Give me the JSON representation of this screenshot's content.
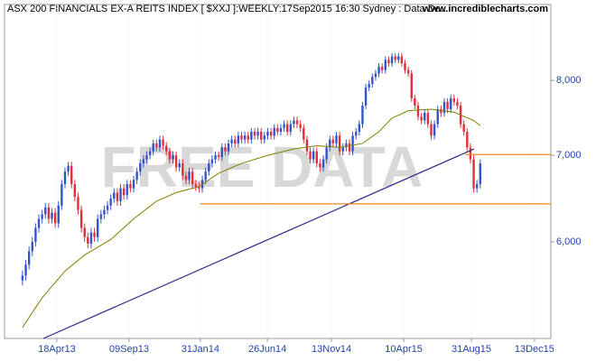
{
  "chart_data": {
    "type": "candlestick",
    "title": "ASX 200 FINANCIALS EX-A REITS INDEX [ $XXJ ]:WEEKLY:17Sep2015 16:30 Sydney : Data De..",
    "source": "www.incrediblecharts.com",
    "watermark": "FREE DATA",
    "log_scale": true,
    "grid": true,
    "up_color": "#3355cc",
    "down_color": "#e0303a",
    "xlim": [
      -5.5,
      161.6
    ],
    "xticks": [
      {
        "value": 10.5,
        "label": "18Apr13"
      },
      {
        "value": 32.6,
        "label": "09Sep13"
      },
      {
        "value": 54.4,
        "label": "31Jan14"
      },
      {
        "value": 74.9,
        "label": "26Jun14"
      },
      {
        "value": 94.5,
        "label": "13Nov14"
      },
      {
        "value": 116.6,
        "label": "10Apr15"
      },
      {
        "value": 137.3,
        "label": "31Aug15"
      },
      {
        "value": 156.6,
        "label": "13Dec15"
      }
    ],
    "ylim": [
      5050,
      9160
    ],
    "yticks": [
      {
        "value": 6000,
        "label": "6,000"
      },
      {
        "value": 7000,
        "label": "7,000"
      },
      {
        "value": 8000,
        "label": "8,000"
      }
    ],
    "x": [
      0,
      1,
      2,
      3,
      4,
      5,
      6,
      7,
      8,
      9,
      10,
      11,
      12,
      13,
      14,
      15,
      16,
      17,
      18,
      19,
      20,
      21,
      22,
      23,
      24,
      25,
      26,
      27,
      28,
      29,
      30,
      31,
      32,
      33,
      34,
      35,
      36,
      37,
      38,
      39,
      40,
      41,
      42,
      43,
      44,
      45,
      46,
      47,
      48,
      49,
      50,
      51,
      52,
      53,
      54,
      55,
      56,
      57,
      58,
      59,
      60,
      61,
      62,
      63,
      64,
      65,
      66,
      67,
      68,
      69,
      70,
      71,
      72,
      73,
      74,
      75,
      76,
      77,
      78,
      79,
      80,
      81,
      82,
      83,
      84,
      85,
      86,
      87,
      88,
      89,
      90,
      91,
      92,
      93,
      94,
      95,
      96,
      97,
      98,
      99,
      100,
      101,
      102,
      103,
      104,
      105,
      106,
      107,
      108,
      109,
      110,
      111,
      112,
      113,
      114,
      115,
      116,
      117,
      118,
      119,
      120,
      121,
      122,
      123,
      124,
      125,
      126,
      127,
      128,
      129,
      130,
      131,
      132,
      133,
      134,
      135,
      136,
      137,
      138,
      139,
      140
    ],
    "open": [
      5600,
      5650,
      5760,
      5900,
      6000,
      6150,
      6250,
      6300,
      6380,
      6250,
      6320,
      6200,
      6400,
      6650,
      6800,
      6870,
      6650,
      6500,
      6350,
      6150,
      6050,
      5980,
      6100,
      6050,
      6250,
      6300,
      6350,
      6400,
      6480,
      6550,
      6450,
      6600,
      6520,
      6650,
      6600,
      6700,
      6800,
      6900,
      6950,
      7000,
      7050,
      7150,
      7100,
      7200,
      7120,
      7050,
      6950,
      7000,
      6850,
      6900,
      6750,
      6700,
      6800,
      6650,
      6620,
      6600,
      6700,
      6800,
      6900,
      6950,
      7000,
      6980,
      7100,
      7050,
      7150,
      7200,
      7150,
      7250,
      7200,
      7250,
      7200,
      7300,
      7250,
      7300,
      7200,
      7250,
      7300,
      7250,
      7350,
      7300,
      7350,
      7400,
      7300,
      7400,
      7450,
      7400,
      7350,
      7200,
      7050,
      6950,
      7050,
      6900,
      6850,
      6950,
      7100,
      7200,
      7150,
      7250,
      7050,
      7100,
      7150,
      7050,
      7250,
      7300,
      7400,
      7650,
      7900,
      7950,
      8050,
      8100,
      8200,
      8150,
      8300,
      8250,
      8350,
      8300,
      8350,
      8250,
      8150,
      8100,
      7750,
      7650,
      7500,
      7450,
      7550,
      7400,
      7250,
      7400,
      7600,
      7550,
      7700,
      7600,
      7750,
      7700,
      7650,
      7400,
      7300,
      7100,
      6950,
      6600,
      6650
    ],
    "high": [
      5700,
      5810,
      5950,
      6050,
      6200,
      6300,
      6350,
      6430,
      6430,
      6370,
      6370,
      6450,
      6700,
      6850,
      6920,
      6920,
      6700,
      6550,
      6400,
      6200,
      6100,
      6150,
      6150,
      6300,
      6350,
      6400,
      6450,
      6530,
      6600,
      6600,
      6650,
      6650,
      6700,
      6700,
      6750,
      6850,
      6950,
      7000,
      7050,
      7100,
      7200,
      7200,
      7250,
      7250,
      7170,
      7100,
      7050,
      7050,
      6950,
      6950,
      6800,
      6850,
      6850,
      6700,
      6670,
      6750,
      6850,
      6950,
      7000,
      7050,
      7050,
      7150,
      7150,
      7200,
      7250,
      7250,
      7300,
      7300,
      7300,
      7300,
      7350,
      7350,
      7350,
      7350,
      7300,
      7350,
      7350,
      7400,
      7400,
      7400,
      7450,
      7450,
      7450,
      7500,
      7500,
      7450,
      7400,
      7250,
      7100,
      7100,
      7100,
      6950,
      7000,
      7150,
      7250,
      7250,
      7300,
      7300,
      7150,
      7200,
      7200,
      7300,
      7350,
      7450,
      7700,
      7950,
      8000,
      8100,
      8150,
      8250,
      8250,
      8350,
      8350,
      8400,
      8400,
      8400,
      8400,
      8300,
      8200,
      8150,
      7800,
      7700,
      7550,
      7600,
      7600,
      7450,
      7450,
      7650,
      7650,
      7750,
      7750,
      7800,
      7800,
      7750,
      7700,
      7450,
      7350,
      7150,
      7000,
      6700,
      6950
    ],
    "low": [
      5550,
      5600,
      5710,
      5850,
      5950,
      6100,
      6200,
      6250,
      6200,
      6200,
      6150,
      6150,
      6350,
      6600,
      6750,
      6600,
      6450,
      6300,
      6100,
      6000,
      5930,
      5930,
      6000,
      6000,
      6200,
      6250,
      6300,
      6350,
      6430,
      6400,
      6400,
      6470,
      6470,
      6550,
      6550,
      6650,
      6750,
      6850,
      6900,
      6950,
      7000,
      7050,
      7050,
      7070,
      7000,
      6900,
      6900,
      6800,
      6800,
      6700,
      6650,
      6650,
      6600,
      6570,
      6550,
      6550,
      6650,
      6750,
      6850,
      6900,
      6930,
      6930,
      7000,
      7000,
      7100,
      7100,
      7100,
      7150,
      7150,
      7150,
      7150,
      7200,
      7200,
      7150,
      7150,
      7200,
      7200,
      7200,
      7250,
      7250,
      7300,
      7250,
      7250,
      7350,
      7350,
      7300,
      7150,
      7000,
      6900,
      6900,
      6850,
      6800,
      6800,
      6900,
      7050,
      7100,
      7100,
      7000,
      7000,
      7050,
      7000,
      7000,
      7200,
      7250,
      7350,
      7600,
      7850,
      7900,
      8000,
      8050,
      8100,
      8100,
      8200,
      8200,
      8250,
      8250,
      8200,
      8100,
      8050,
      7700,
      7600,
      7450,
      7400,
      7400,
      7350,
      7200,
      7200,
      7350,
      7500,
      7500,
      7550,
      7550,
      7650,
      7600,
      7350,
      7250,
      7050,
      6900,
      6550,
      6550,
      6600
    ],
    "close": [
      5650,
      5760,
      5900,
      6000,
      6150,
      6250,
      6300,
      6380,
      6250,
      6320,
      6200,
      6400,
      6650,
      6800,
      6870,
      6650,
      6500,
      6350,
      6150,
      6050,
      5980,
      6100,
      6050,
      6250,
      6300,
      6350,
      6400,
      6480,
      6550,
      6450,
      6600,
      6520,
      6650,
      6600,
      6700,
      6800,
      6900,
      6950,
      7000,
      7050,
      7150,
      7100,
      7200,
      7120,
      7050,
      6950,
      7000,
      6850,
      6900,
      6750,
      6700,
      6800,
      6650,
      6620,
      6600,
      6700,
      6800,
      6900,
      6950,
      7000,
      6980,
      7100,
      7050,
      7150,
      7200,
      7150,
      7250,
      7200,
      7250,
      7200,
      7300,
      7250,
      7300,
      7200,
      7250,
      7300,
      7250,
      7350,
      7300,
      7350,
      7400,
      7300,
      7400,
      7450,
      7400,
      7350,
      7200,
      7050,
      6950,
      7050,
      6900,
      6850,
      6950,
      7100,
      7200,
      7150,
      7250,
      7050,
      7100,
      7150,
      7050,
      7250,
      7300,
      7400,
      7650,
      7900,
      7950,
      8050,
      8100,
      8200,
      8150,
      8300,
      8250,
      8350,
      8300,
      8350,
      8250,
      8150,
      8100,
      7750,
      7650,
      7500,
      7450,
      7550,
      7400,
      7250,
      7400,
      7600,
      7550,
      7700,
      7600,
      7750,
      7700,
      7650,
      7400,
      7300,
      7100,
      6950,
      6600,
      6650,
      6900
    ],
    "moving_average": {
      "color": "#808000",
      "x": [
        0,
        6,
        13,
        19,
        27,
        34,
        41,
        47,
        54,
        60,
        67,
        75,
        83,
        90,
        97,
        104,
        109,
        113,
        118,
        125,
        132,
        138,
        140
      ],
      "values": [
        5150,
        5430,
        5695,
        5860,
        6025,
        6250,
        6450,
        6550,
        6620,
        6780,
        6900,
        7000,
        7080,
        7120,
        7100,
        7150,
        7300,
        7480,
        7580,
        7600,
        7560,
        7450,
        7380
      ]
    },
    "trendlines": [
      {
        "color": "#2a2a8a",
        "x": [
          6.4,
          138.1
        ],
        "values": [
          5050,
          7080
        ]
      },
      {
        "color": "#f08a24",
        "x": [
          135.4,
          161.6
        ],
        "values": [
          7010,
          7010
        ]
      },
      {
        "color": "#f08a24",
        "x": [
          54.4,
          161.6
        ],
        "values": [
          6420,
          6420
        ]
      }
    ]
  }
}
